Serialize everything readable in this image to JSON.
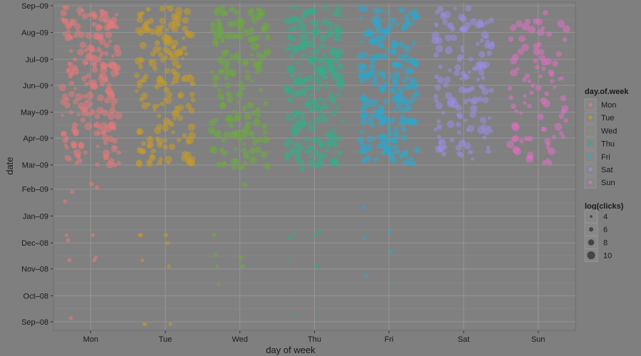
{
  "chart_data": {
    "type": "scatter",
    "title": "",
    "xlabel": "day of week",
    "ylabel": "date",
    "categories": [
      "Mon",
      "Tue",
      "Wed",
      "Thu",
      "Fri",
      "Sat",
      "Sun"
    ],
    "y_ticks": [
      "Sep–09",
      "Aug–09",
      "Jul–09",
      "Jun–09",
      "May–09",
      "Apr–09",
      "Mar–09",
      "Feb–09",
      "Jan–09",
      "Dec–08",
      "Nov–08",
      "Oct–08",
      "Sep–08"
    ],
    "ylim": [
      "2008-08-22",
      "2009-09-05"
    ],
    "grid": true,
    "colors": {
      "Mon": "#e8787a",
      "Tue": "#c49a2a",
      "Wed": "#6cab3c",
      "Thu": "#2fae8a",
      "Fri": "#27a9d1",
      "Sat": "#9a8ce6",
      "Sun": "#e070c2"
    },
    "legend": {
      "color_title": "day.of.week",
      "color_entries": [
        "Mon",
        "Tue",
        "Wed",
        "Thu",
        "Fri",
        "Sat",
        "Sun"
      ],
      "size_title": "log(clicks)",
      "size_entries": [
        4,
        6,
        8,
        10
      ],
      "placement": "right"
    },
    "series": [
      {
        "name": "Mon",
        "sparse": [
          [
            "2009-01-18",
            5.8
          ],
          [
            "2009-02-07",
            6.6
          ],
          [
            "2008-12-10",
            5.2
          ],
          [
            "2008-12-10",
            5.4
          ],
          [
            "2008-12-04",
            5.8
          ],
          [
            "2008-11-11",
            5.6
          ],
          [
            "2008-11-11",
            5.6
          ],
          [
            "2008-11-14",
            5.4
          ],
          [
            "2008-09-05",
            5.6
          ],
          [
            "2009-02-03",
            6.2
          ],
          [
            "2009-01-29",
            6.0
          ]
        ]
      },
      {
        "name": "Tue",
        "sparse": [
          [
            "2008-12-10",
            5.6
          ],
          [
            "2008-12-10",
            6.0
          ],
          [
            "2008-12-10",
            5.6
          ],
          [
            "2008-12-01",
            5.6
          ],
          [
            "2008-11-11",
            5.4
          ],
          [
            "2008-11-04",
            5.4
          ],
          [
            "2008-08-29",
            4.8
          ],
          [
            "2008-08-29",
            5.2
          ],
          [
            "2008-08-29",
            5.2
          ]
        ]
      },
      {
        "name": "Wed",
        "sparse": [
          [
            "2008-12-10",
            6.0
          ],
          [
            "2008-11-14",
            6.6
          ],
          [
            "2008-11-17",
            6.0
          ],
          [
            "2008-11-04",
            5.4
          ],
          [
            "2008-11-04",
            5.2
          ],
          [
            "2008-11-04",
            5.2
          ],
          [
            "2008-10-14",
            5.0
          ],
          [
            "2009-02-06",
            6.6
          ]
        ]
      },
      {
        "name": "Thu",
        "sparse": [
          [
            "2008-12-07",
            5.6
          ],
          [
            "2008-12-10",
            5.6
          ],
          [
            "2008-11-11",
            5.0
          ],
          [
            "2008-11-04",
            6.2
          ],
          [
            "2008-10-10",
            3.2
          ],
          [
            "2008-09-09",
            3.4
          ],
          [
            "2008-09-09",
            4.8
          ],
          [
            "2008-12-14",
            5.8
          ],
          [
            "2008-12-10",
            4.6
          ]
        ]
      },
      {
        "name": "Fri",
        "sparse": [
          [
            "2009-01-11",
            5.6
          ],
          [
            "2008-12-14",
            5.6
          ],
          [
            "2008-12-07",
            5.0
          ],
          [
            "2008-11-21",
            5.2
          ],
          [
            "2008-10-24",
            5.0
          ],
          [
            "2008-10-14",
            3.2
          ]
        ]
      },
      {
        "name": "Sat",
        "sparse": []
      },
      {
        "name": "Sun",
        "sparse": []
      }
    ]
  }
}
